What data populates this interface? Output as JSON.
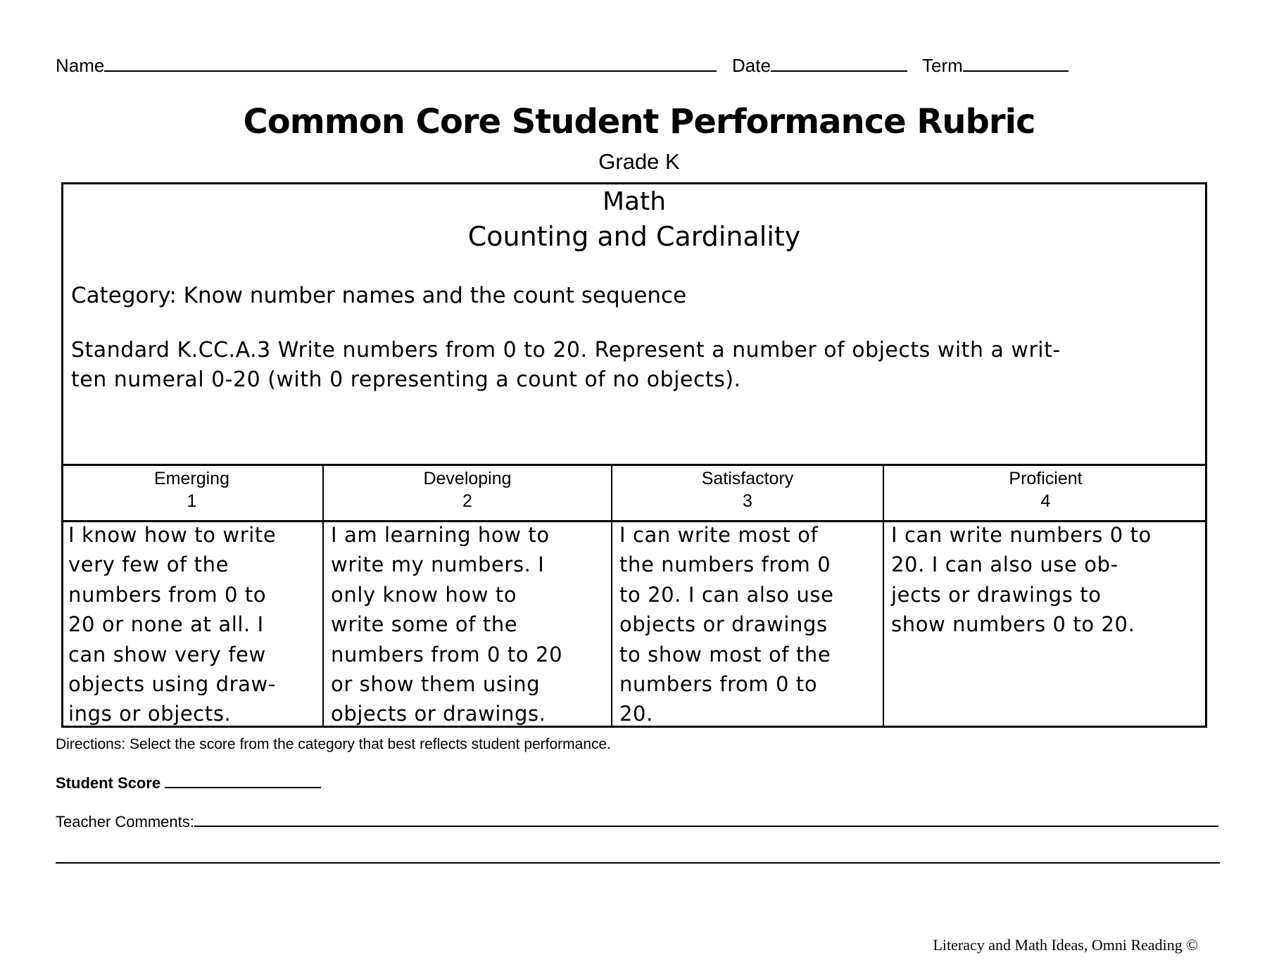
{
  "header": {
    "name_label": "Name",
    "date_label": "Date",
    "term_label": "Term"
  },
  "title": "Common Core Student Performance Rubric",
  "grade": "Grade K",
  "rubric": {
    "subject": "Math",
    "domain": "Counting and Cardinality",
    "category": "Category:  Know number names and the count sequence",
    "standard_lines": [
      "Standard K.CC.A.3 Write numbers from 0 to 20. Represent a number of objects with a writ-",
      "ten numeral 0-20 (with 0 representing a count of no objects)."
    ],
    "levels": [
      {
        "name": "Emerging",
        "score": "1",
        "lines": [
          "I know how to write",
          "very few of the",
          "numbers from 0 to",
          "20 or none at all.  I",
          "can show very few",
          "objects using draw-",
          "ings or objects."
        ]
      },
      {
        "name": "Developing",
        "score": "2",
        "lines": [
          "I am learning how to",
          "write my numbers.  I",
          "only know how to",
          "write some of the",
          "numbers from 0 to 20",
          "or show them using",
          "objects or drawings."
        ]
      },
      {
        "name": "Satisfactory",
        "score": "3",
        "lines": [
          "I can write most of",
          "the numbers from 0",
          "to 20.  I can also use",
          "objects or drawings",
          "to show most of the",
          "numbers from 0 to",
          "20."
        ]
      },
      {
        "name": "Proficient",
        "score": "4",
        "lines": [
          "I can write numbers 0 to",
          "20.  I can also use ob-",
          "jects or drawings to",
          "show numbers 0 to 20."
        ]
      }
    ]
  },
  "directions": "Directions:  Select the score from the category that best reflects student performance.",
  "student_score_label": "Student Score",
  "teacher_comments_label": "Teacher Comments:",
  "footer": "Literacy and Math Ideas, Omni Reading ©"
}
